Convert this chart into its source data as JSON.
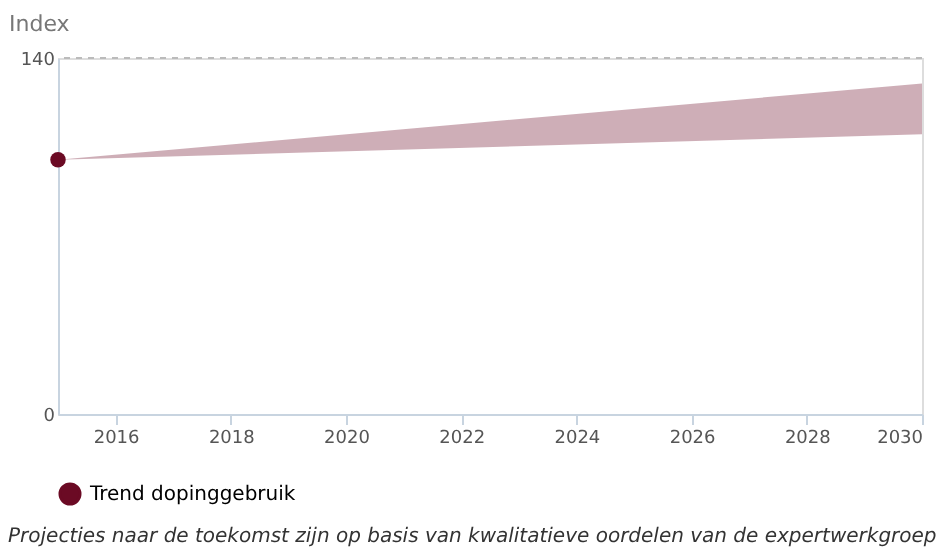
{
  "chart_data": {
    "type": "line",
    "ylabel": "Index",
    "x": [
      2015,
      2030
    ],
    "series": [
      {
        "name": "Trend dopinggebruik",
        "color": "#6b0a24",
        "values": [
          100,
          null
        ],
        "lower": [
          100,
          110
        ],
        "upper": [
          100,
          130
        ]
      }
    ],
    "xlim": [
      2015,
      2030
    ],
    "xticks": [
      2016,
      2018,
      2020,
      2022,
      2024,
      2026,
      2028,
      2030
    ],
    "ylim": [
      0,
      140
    ],
    "yticks": [
      0,
      140
    ],
    "ref_lines": [
      {
        "axis": "y",
        "value": 140,
        "color": "#bbbbbb",
        "line_style": "dashed"
      }
    ],
    "legend": "bottom",
    "marker": "circle",
    "annotations": [
      "Projecties naar de toekomst zijn op basis van kwalitatieve oordelen van de expertwerkgroep"
    ]
  }
}
